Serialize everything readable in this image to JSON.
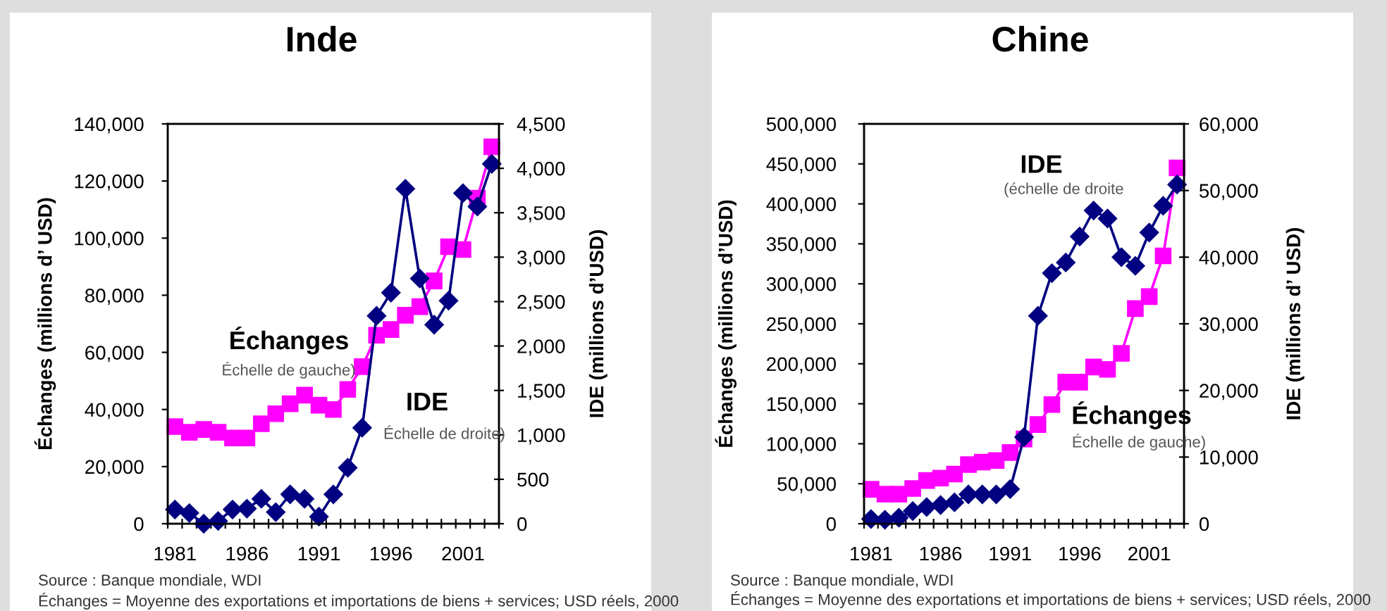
{
  "chart_data": [
    {
      "type": "line",
      "title": "Inde",
      "ylabel": "Échanges (millions d’ USD)",
      "y2label": "IDE (millions d’USD)",
      "categories": [
        "1981",
        null,
        null,
        null,
        null,
        "1986",
        null,
        null,
        null,
        null,
        "1991",
        null,
        null,
        null,
        null,
        "1996",
        null,
        null,
        null,
        null,
        "2001",
        null,
        null
      ],
      "series": [
        {
          "name": "Échanges",
          "color": "#ff00ff",
          "axis": "y",
          "marker": "square",
          "values": [
            34000,
            32000,
            33000,
            32000,
            30000,
            30000,
            35000,
            38500,
            42000,
            45000,
            41500,
            40000,
            47000,
            55000,
            66000,
            68000,
            73000,
            76000,
            85000,
            97000,
            96000,
            114000,
            132000
          ]
        },
        {
          "name": "IDE",
          "color": "#000080",
          "axis": "y2",
          "marker": "diamond",
          "values": [
            160,
            120,
            0,
            30,
            160,
            170,
            280,
            130,
            330,
            280,
            80,
            330,
            630,
            1080,
            2340,
            2600,
            3770,
            2760,
            2240,
            2510,
            3720,
            3570,
            4050
          ]
        }
      ],
      "ylim": [
        0,
        140000
      ],
      "yticks": [
        0,
        {
          "value": 20000,
          "label": "20,000"
        },
        {
          "value": 40000,
          "label": "40,000"
        },
        {
          "value": 60000,
          "label": "60,000"
        },
        {
          "value": 80000,
          "label": "80,000"
        },
        {
          "value": 100000,
          "label": "100,000"
        },
        {
          "value": 120000,
          "label": "120,000"
        },
        {
          "value": 140000,
          "label": "140,000"
        }
      ],
      "y2lim": [
        0,
        4500
      ],
      "y2ticks": [
        0,
        500,
        {
          "value": 1000,
          "label": "1,000"
        },
        {
          "value": 1500,
          "label": "1,500"
        },
        {
          "value": 2000,
          "label": "2,000"
        },
        {
          "value": 2500,
          "label": "2,500"
        },
        {
          "value": 3000,
          "label": "3,000"
        },
        {
          "value": 3500,
          "label": "3,500"
        },
        {
          "value": 4000,
          "label": "4,000"
        },
        {
          "value": 4500,
          "label": "4,500"
        }
      ],
      "annotations": [
        "Échelle de gauche)",
        "Échelle de droite)",
        "Source : Banque mondiale, WDI",
        "Échanges = Moyenne des exportations et importations de biens + services; USD réels, 2000"
      ]
    },
    {
      "type": "line",
      "title": "Chine",
      "ylabel": "Échanges (millions d’USD)",
      "y2label": "IDE (millions d’ USD)",
      "categories": [
        "1981",
        null,
        null,
        null,
        null,
        "1986",
        null,
        null,
        null,
        null,
        "1991",
        null,
        null,
        null,
        null,
        "1996",
        null,
        null,
        null,
        null,
        "2001",
        null,
        null
      ],
      "series": [
        {
          "name": "Échanges",
          "color": "#ff00ff",
          "axis": "y",
          "marker": "square",
          "values": [
            43000,
            37000,
            37000,
            44000,
            54000,
            57000,
            62000,
            74000,
            77000,
            79000,
            89000,
            106000,
            124000,
            149000,
            177000,
            177000,
            196000,
            193000,
            213000,
            269000,
            284000,
            335000,
            445000
          ]
        },
        {
          "name": "IDE",
          "color": "#000080",
          "axis": "y2",
          "marker": "diamond",
          "values": [
            700,
            600,
            900,
            1900,
            2500,
            2800,
            3200,
            4400,
            4400,
            4400,
            5200,
            13000,
            31200,
            37600,
            39200,
            43100,
            47000,
            45800,
            40000,
            38700,
            43700,
            47700,
            50900
          ]
        }
      ],
      "ylim": [
        0,
        500000
      ],
      "yticks": [
        0,
        {
          "value": 50000,
          "label": "50,000"
        },
        {
          "value": 100000,
          "label": "100,000"
        },
        {
          "value": 150000,
          "label": "150,000"
        },
        {
          "value": 200000,
          "label": "200,000"
        },
        {
          "value": 250000,
          "label": "250,000"
        },
        {
          "value": 300000,
          "label": "300,000"
        },
        {
          "value": 350000,
          "label": "350,000"
        },
        {
          "value": 400000,
          "label": "400,000"
        },
        {
          "value": 450000,
          "label": "450,000"
        },
        {
          "value": 500000,
          "label": "500,000"
        }
      ],
      "y2lim": [
        0,
        60000
      ],
      "y2ticks": [
        0,
        {
          "value": 10000,
          "label": "10,000"
        },
        {
          "value": 20000,
          "label": "20,000"
        },
        {
          "value": 30000,
          "label": "30,000"
        },
        {
          "value": 40000,
          "label": "40,000"
        },
        {
          "value": 50000,
          "label": "50,000"
        },
        {
          "value": 60000,
          "label": "60,000"
        }
      ],
      "annotations": [
        "(échelle de droite",
        "Échelle de gauche)",
        "Source : Banque mondiale, WDI",
        "Échanges = Moyenne des exportations et importations de biens + services; USD réels, 2000"
      ]
    }
  ]
}
